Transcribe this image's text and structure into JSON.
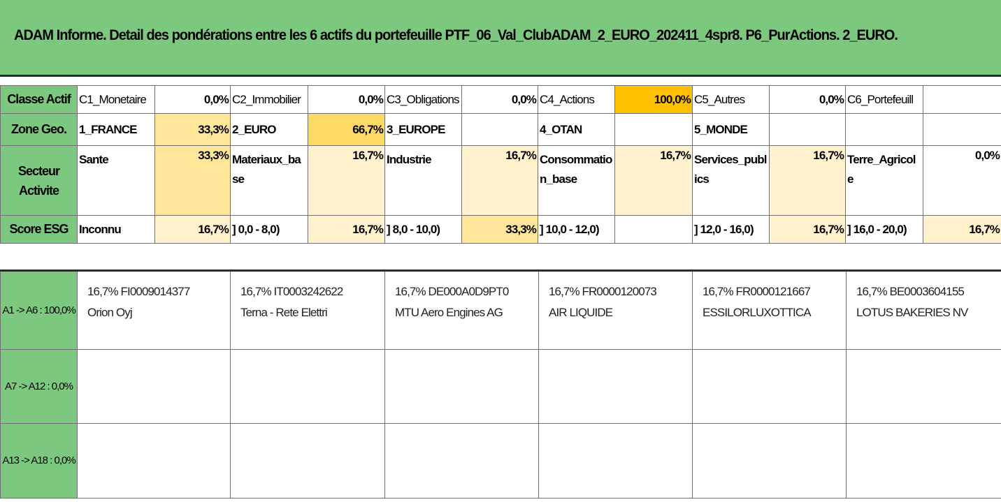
{
  "title": "ADAM Informe. Detail des pondérations entre les 6 actifs du portefeuille PTF_06_Val_ClubADAM_2_EURO_202411_4spr8. P6_PurActions. 2_EURO.",
  "colors": {
    "header_green": "#7dc87f",
    "level_1": "#fff2cc",
    "level_2": "#ffe699",
    "level_3": "#ffd966",
    "level_max": "#ffc000"
  },
  "classe_actif": {
    "label": "Classe Actif",
    "items": [
      {
        "name": "C1_Monetaire",
        "value": "0,0%"
      },
      {
        "name": "C2_Immobilier",
        "value": "0,0%"
      },
      {
        "name": "C3_Obligations",
        "value": "0,0%"
      },
      {
        "name": "C4_Actions",
        "value": "100,0%"
      },
      {
        "name": "C5_Autres",
        "value": "0,0%"
      },
      {
        "name": "C6_Portefeuill",
        "value": ""
      }
    ]
  },
  "zone_geo": {
    "label": "Zone Geo.",
    "items": [
      {
        "name": "1_FRANCE",
        "value": "33,3%"
      },
      {
        "name": "2_EURO",
        "value": "66,7%"
      },
      {
        "name": "3_EUROPE",
        "value": ""
      },
      {
        "name": "4_OTAN",
        "value": ""
      },
      {
        "name": "5_MONDE",
        "value": ""
      },
      {
        "name": "",
        "value": ""
      }
    ]
  },
  "secteur_activite": {
    "label": "Secteur Activite",
    "items": [
      {
        "name": "Sante",
        "value": "33,3%"
      },
      {
        "name": "Materiaux_base",
        "value": "16,7%"
      },
      {
        "name": "Industrie",
        "value": "16,7%"
      },
      {
        "name": "Consommation_base",
        "value": "16,7%"
      },
      {
        "name": "Services_publics",
        "value": "16,7%"
      },
      {
        "name": "Terre_Agricole",
        "value": "0,0%"
      }
    ]
  },
  "score_esg": {
    "label": "Score ESG",
    "items": [
      {
        "name": "Inconnu",
        "value": "16,7%"
      },
      {
        "name": "] 0,0 - 8,0)",
        "value": "16,7%"
      },
      {
        "name": "] 8,0 - 10,0)",
        "value": "33,3%"
      },
      {
        "name": "] 10,0 - 12,0)",
        "value": ""
      },
      {
        "name": "] 12,0 - 16,0)",
        "value": "16,7%"
      },
      {
        "name": "] 16,0 - 20,0)",
        "value": "16,7%"
      }
    ]
  },
  "asset_rows": [
    {
      "label": "A1 -> A6 : 100,0%",
      "assets": [
        {
          "line1": "16,7% FI0009014377",
          "line2": "Orion Oyj"
        },
        {
          "line1": "16,7% IT0003242622",
          "line2": "Terna - Rete Elettri"
        },
        {
          "line1": "16,7% DE000A0D9PT0",
          "line2": "MTU Aero Engines AG"
        },
        {
          "line1": "16,7% FR0000120073",
          "line2": "AIR LIQUIDE"
        },
        {
          "line1": "16,7% FR0000121667",
          "line2": "ESSILORLUXOTTICA"
        },
        {
          "line1": "16,7% BE0003604155",
          "line2": "LOTUS BAKERIES NV"
        }
      ]
    },
    {
      "label": "A7 -> A12 : 0,0%",
      "assets": []
    },
    {
      "label": "A13 -> A18 : 0,0%",
      "assets": []
    }
  ]
}
